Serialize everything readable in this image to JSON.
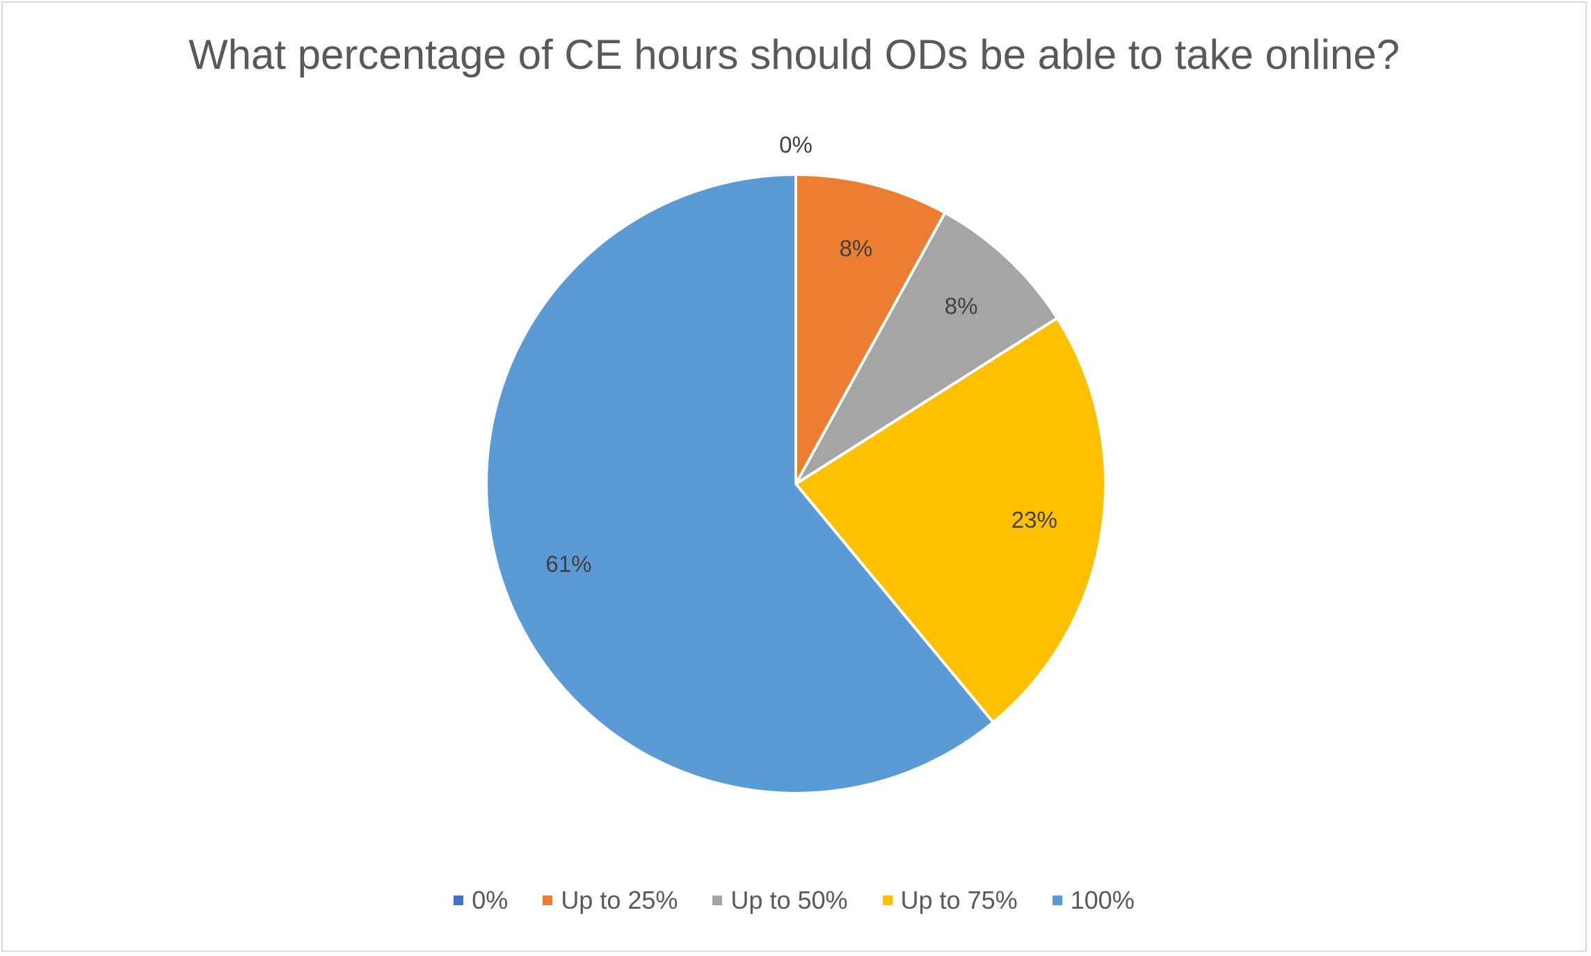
{
  "chart_data": {
    "type": "pie",
    "title": "What percentage of CE hours should ODs be able to take online?",
    "slices": [
      {
        "label": "0%",
        "value": 0,
        "display": "0%",
        "color": "#4472C4"
      },
      {
        "label": "Up to 25%",
        "value": 8,
        "display": "8%",
        "color": "#ED7D31"
      },
      {
        "label": "Up to 50%",
        "value": 8,
        "display": "8%",
        "color": "#A5A5A5"
      },
      {
        "label": "Up to 75%",
        "value": 23,
        "display": "23%",
        "color": "#FFC000"
      },
      {
        "label": "100%",
        "value": 61,
        "display": "61%",
        "color": "#5B9BD5"
      }
    ],
    "legend_position": "bottom",
    "start_angle": "top, clockwise"
  },
  "colors": {
    "title_text": "#595959",
    "label_text": "#404040",
    "legend_text": "#595959",
    "slice_border": "#ffffff",
    "frame_border": "#d9d9d9"
  }
}
